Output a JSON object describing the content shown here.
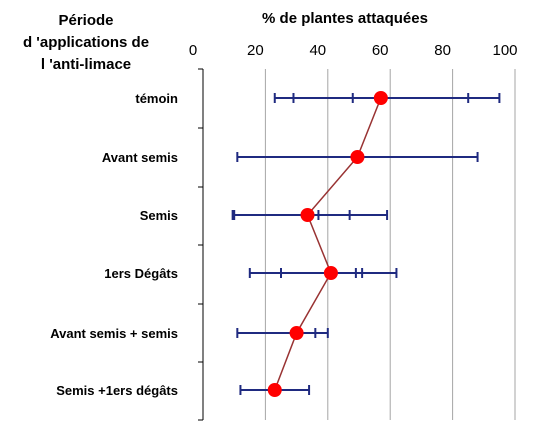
{
  "chart_data": {
    "type": "scatter",
    "orientation": "horizontal",
    "title": "% de plantes attaquées",
    "ylabel_lines": [
      "Période",
      "d 'applications de",
      "l 'anti-limace"
    ],
    "xlim": [
      0,
      100
    ],
    "xticks": [
      0,
      20,
      40,
      60,
      80,
      100
    ],
    "grid": "vertical",
    "categories": [
      "témoin",
      "Avant semis",
      "Semis",
      "1ers Dégâts",
      "Avant semis + semis",
      "Semis +1ers dégâts"
    ],
    "series": [
      {
        "values": [
          57,
          49.5,
          33.5,
          41,
          30,
          23
        ],
        "marker_color": "#ff0000",
        "line_color": "#993333"
      }
    ],
    "error_bars": [
      {
        "min": 23,
        "max": 95,
        "inner_ticks": [
          29,
          48,
          85
        ]
      },
      {
        "min": 11,
        "max": 88,
        "inner_ticks": []
      },
      {
        "min": 9.5,
        "max": 59,
        "inner_ticks": [
          10,
          37,
          47
        ]
      },
      {
        "min": 15,
        "max": 62,
        "inner_ticks": [
          25,
          49,
          51
        ]
      },
      {
        "min": 11,
        "max": 40,
        "inner_ticks": [
          36
        ]
      },
      {
        "min": 12,
        "max": 34,
        "inner_ticks": []
      }
    ],
    "error_bar_color": "#1f2a80"
  }
}
